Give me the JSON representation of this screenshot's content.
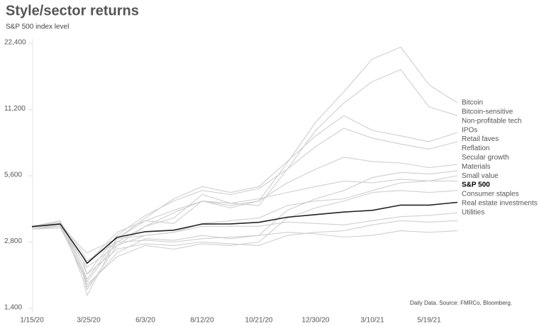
{
  "chart_data": {
    "type": "line",
    "title": "Style/sector returns",
    "subtitle": "S&P 500 index level",
    "source": "Daily Data.  Source: FMRCo, Bloomberg.",
    "log_y": true,
    "grid": false,
    "ylim": [
      1400,
      22400
    ],
    "yticks": [
      {
        "value": 1400,
        "label": "1,400"
      },
      {
        "value": 2800,
        "label": "2,800"
      },
      {
        "value": 5600,
        "label": "5,600"
      },
      {
        "value": 11200,
        "label": "11,200"
      },
      {
        "value": 22400,
        "label": "22,400"
      }
    ],
    "xticks": [
      "1/15/20",
      "3/25/20",
      "6/3/20",
      "8/12/20",
      "10/21/20",
      "12/30/20",
      "3/10/21",
      "5/19/21"
    ],
    "x": [
      "1/15/20",
      "2/19/20",
      "3/18/20",
      "3/23/20",
      "4/29/20",
      "6/3/20",
      "7/8/20",
      "8/12/20",
      "9/16/20",
      "10/21/20",
      "11/25/20",
      "12/30/20",
      "2/3/21",
      "3/10/21",
      "4/14/21",
      "5/19/21",
      "6/23/21"
    ],
    "series": [
      {
        "name": "Bitcoin",
        "color": "#cfcfcf",
        "values": [
          3300,
          3500,
          1900,
          1600,
          2900,
          3500,
          3400,
          4300,
          4000,
          4300,
          6400,
          9800,
          13500,
          19000,
          21500,
          14500,
          12000
        ]
      },
      {
        "name": "Bitcoin-sensitive",
        "color": "#cfcfcf",
        "values": [
          3200,
          3300,
          2000,
          1700,
          2700,
          3300,
          3600,
          4600,
          4200,
          4100,
          6000,
          9000,
          12000,
          15000,
          17000,
          11500,
          10500
        ]
      },
      {
        "name": "Non-profitable tech",
        "color": "#cfcfcf",
        "values": [
          3300,
          3400,
          2100,
          1900,
          2900,
          3600,
          4400,
          5000,
          4700,
          5000,
          6500,
          8500,
          10500,
          9000,
          8500,
          8000,
          8800
        ]
      },
      {
        "name": "IPOs",
        "color": "#cfcfcf",
        "values": [
          3250,
          3350,
          2200,
          2000,
          3000,
          3700,
          4300,
          4800,
          4600,
          4900,
          6000,
          7600,
          9200,
          8300,
          7800,
          7400,
          8000
        ]
      },
      {
        "name": "Retail faves",
        "color": "#cfcfcf",
        "values": [
          3300,
          3350,
          2100,
          1850,
          2800,
          3300,
          3800,
          4300,
          4100,
          4300,
          5200,
          6000,
          6800,
          6500,
          6400,
          6100,
          6300
        ]
      },
      {
        "name": "Reflation",
        "color": "#cfcfcf",
        "values": [
          3250,
          3300,
          2000,
          1750,
          2500,
          2900,
          2850,
          3000,
          2900,
          3000,
          3900,
          4400,
          4800,
          5500,
          5800,
          5700,
          5900
        ]
      },
      {
        "name": "Secular growth",
        "color": "#cfcfcf",
        "values": [
          3300,
          3400,
          2400,
          2250,
          3100,
          3500,
          3900,
          4300,
          4200,
          4400,
          4700,
          5000,
          5300,
          5200,
          5400,
          5300,
          5600
        ]
      },
      {
        "name": "Materials",
        "color": "#cfcfcf",
        "values": [
          3250,
          3300,
          2300,
          2150,
          2700,
          3000,
          3100,
          3400,
          3500,
          3600,
          4100,
          4300,
          4400,
          4800,
          5200,
          5300,
          5300
        ]
      },
      {
        "name": "Small value",
        "color": "#cfcfcf",
        "values": [
          3200,
          3250,
          2050,
          1800,
          2400,
          2700,
          2600,
          2750,
          2700,
          2800,
          3600,
          4000,
          4300,
          4700,
          4800,
          4700,
          4800
        ]
      },
      {
        "name": "S&P 500",
        "color": "#222222",
        "values": [
          3290,
          3380,
          2400,
          2240,
          2940,
          3120,
          3170,
          3380,
          3385,
          3440,
          3630,
          3730,
          3830,
          3900,
          4120,
          4120,
          4240
        ]
      },
      {
        "name": "Consumer staples",
        "color": "#cfcfcf",
        "values": [
          3300,
          3350,
          2600,
          2500,
          2900,
          3000,
          3100,
          3300,
          3300,
          3300,
          3450,
          3400,
          3350,
          3500,
          3650,
          3700,
          3800
        ]
      },
      {
        "name": "Real estate investments",
        "color": "#cfcfcf",
        "values": [
          3300,
          3400,
          2300,
          2000,
          2600,
          2750,
          2700,
          2800,
          2750,
          2700,
          3000,
          3100,
          3150,
          3350,
          3500,
          3450,
          3500
        ]
      },
      {
        "name": "Utilities",
        "color": "#cfcfcf",
        "values": [
          3300,
          3450,
          2500,
          2300,
          2800,
          2850,
          2800,
          2900,
          2950,
          3000,
          3100,
          3050,
          2950,
          3000,
          3150,
          3100,
          3150
        ]
      }
    ]
  }
}
